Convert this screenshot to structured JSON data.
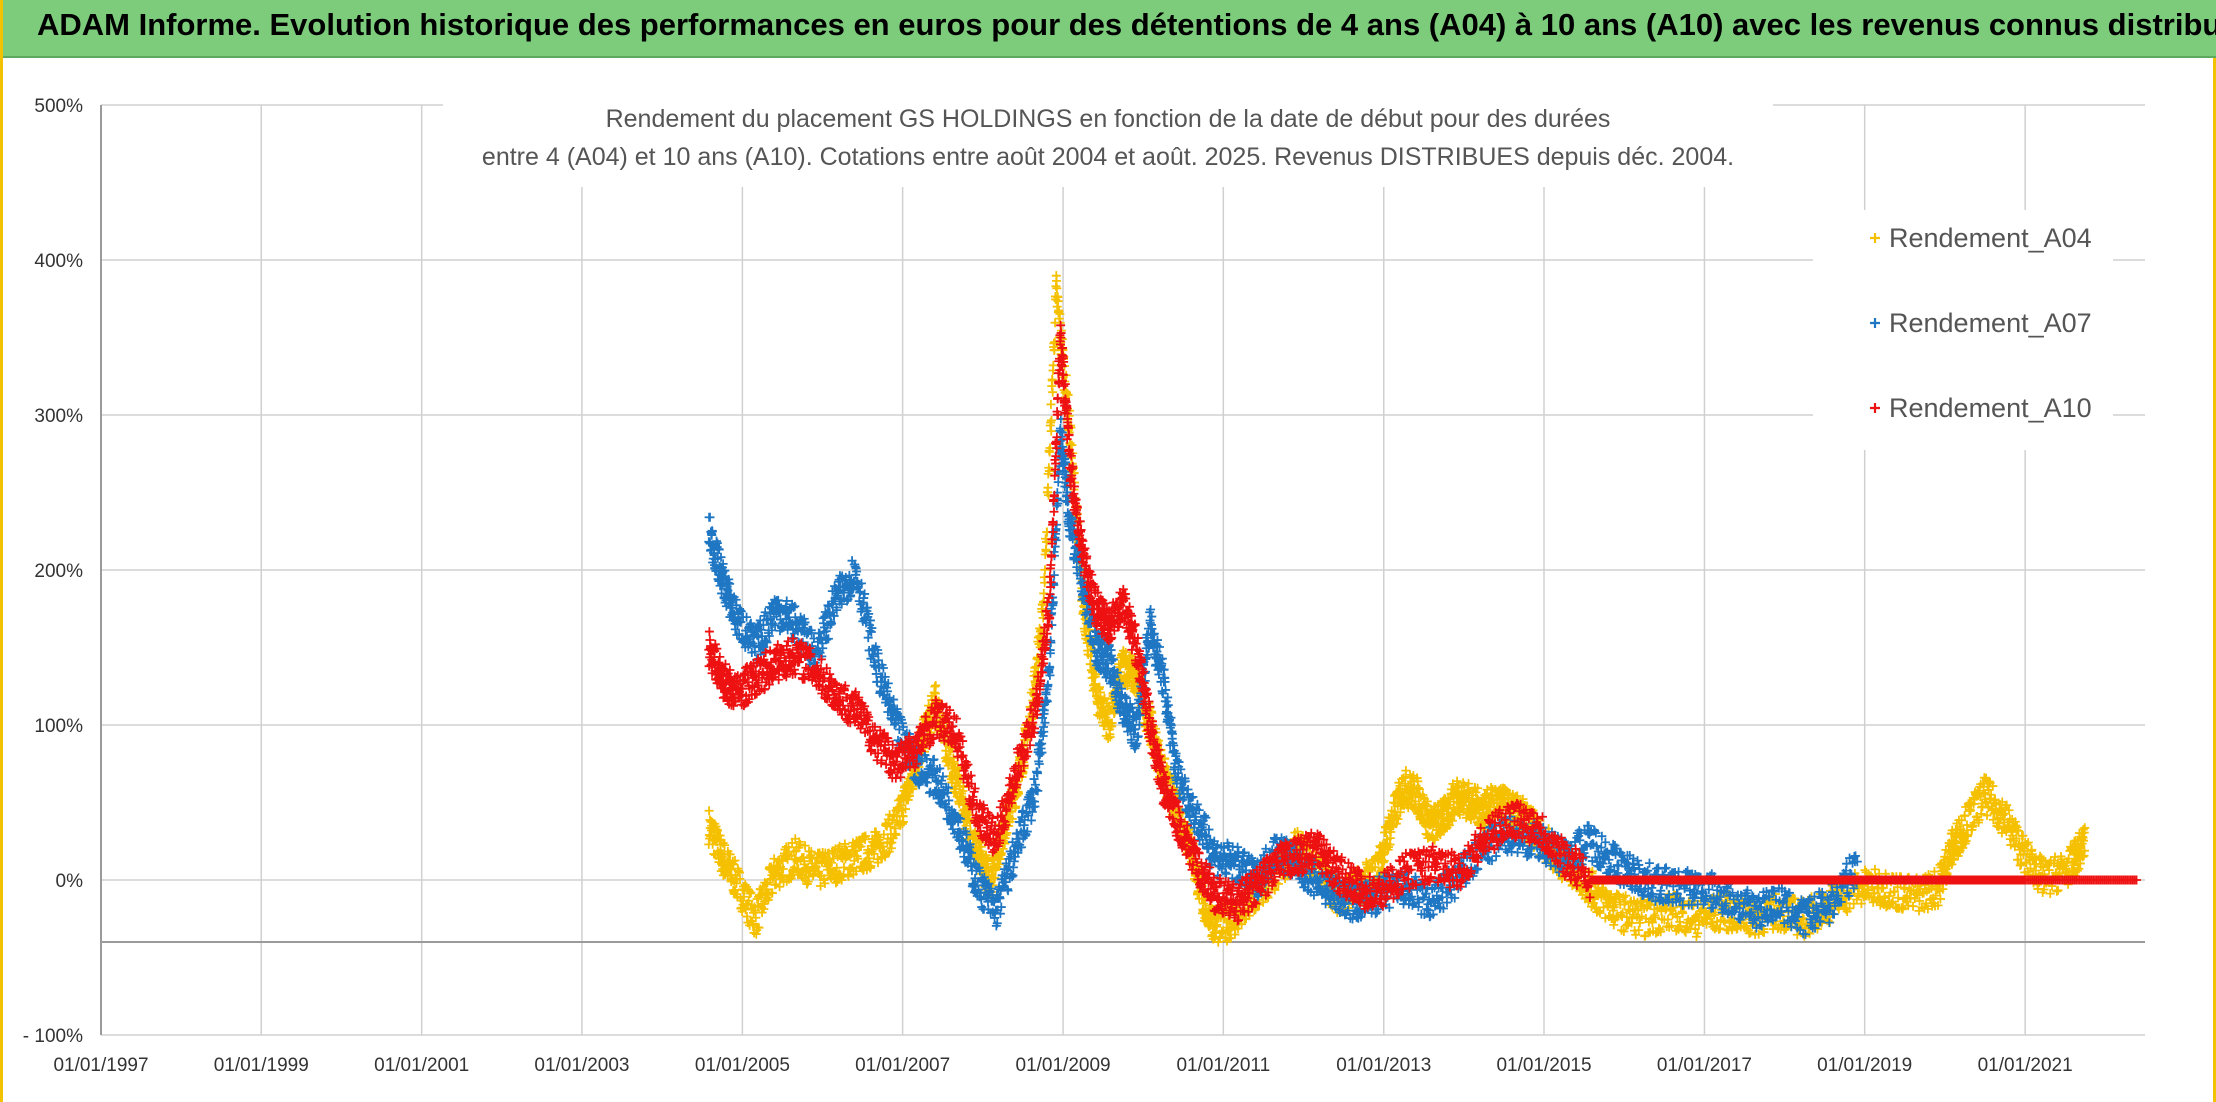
{
  "banner": {
    "title": "ADAM Informe. Evolution historique des performances en euros pour des détentions de 4 ans (A04) à 10 ans (A10) avec les revenus connus distribués"
  },
  "colors": {
    "banner": "#7ccc7c",
    "frame_accent": "#f2c200",
    "a04": "#f5c000",
    "a07": "#1f77c4",
    "a10": "#ee1111",
    "grid": "#d0d0d0",
    "axis_text": "#333333"
  },
  "chart_data": {
    "type": "scatter",
    "title": "Rendement du placement GS HOLDINGS en fonction de la date de début pour des durées",
    "subtitle": "entre 4 (A04) et 10 ans (A10). Cotations entre août 2004 et août. 2025. Revenus DISTRIBUES depuis déc. 2004.",
    "x_axis": {
      "kind": "date",
      "min": "1997-01-01",
      "max": "2022-07-01",
      "ticks": [
        "1997-01-01",
        "1999-01-01",
        "2001-01-01",
        "2003-01-01",
        "2005-01-01",
        "2007-01-01",
        "2009-01-01",
        "2011-01-01",
        "2013-01-01",
        "2015-01-01",
        "2017-01-01",
        "2019-01-01",
        "2021-01-01"
      ],
      "tick_labels": [
        "01/01/1997",
        "01/01/1999",
        "01/01/2001",
        "01/01/2003",
        "01/01/2005",
        "01/01/2007",
        "01/01/2009",
        "01/01/2011",
        "01/01/2013",
        "01/01/2015",
        "01/01/2017",
        "01/01/2019",
        "01/01/2021"
      ]
    },
    "y_axis": {
      "min": -100,
      "max": 500,
      "unit": "%",
      "ticks": [
        -100,
        0,
        100,
        200,
        300,
        400,
        500
      ],
      "tick_labels": [
        "- 100%",
        "0%",
        "100%",
        "200%",
        "300%",
        "400%",
        "500%"
      ],
      "extra_line": -40
    },
    "grid": true,
    "legend_position": "top-right",
    "marker": "+",
    "series": [
      {
        "name": "Rendement_A04",
        "points": [
          [
            "2004-08-01",
            35
          ],
          [
            "2004-10-01",
            15
          ],
          [
            "2004-12-01",
            0
          ],
          [
            "2005-03-01",
            -25
          ],
          [
            "2005-06-01",
            5
          ],
          [
            "2005-09-01",
            15
          ],
          [
            "2005-12-01",
            5
          ],
          [
            "2006-03-01",
            10
          ],
          [
            "2006-06-01",
            15
          ],
          [
            "2006-09-01",
            20
          ],
          [
            "2006-12-01",
            35
          ],
          [
            "2007-02-01",
            60
          ],
          [
            "2007-04-01",
            90
          ],
          [
            "2007-06-01",
            115
          ],
          [
            "2007-08-01",
            80
          ],
          [
            "2007-10-01",
            50
          ],
          [
            "2007-12-01",
            20
          ],
          [
            "2008-02-01",
            0
          ],
          [
            "2008-04-01",
            30
          ],
          [
            "2008-06-01",
            60
          ],
          [
            "2008-08-01",
            100
          ],
          [
            "2008-10-01",
            170
          ],
          [
            "2008-12-01",
            380
          ],
          [
            "2009-02-01",
            290
          ],
          [
            "2009-04-01",
            180
          ],
          [
            "2009-06-01",
            120
          ],
          [
            "2009-08-01",
            100
          ],
          [
            "2009-10-01",
            140
          ],
          [
            "2009-12-01",
            130
          ],
          [
            "2010-02-01",
            100
          ],
          [
            "2010-04-01",
            70
          ],
          [
            "2010-06-01",
            45
          ],
          [
            "2010-08-01",
            25
          ],
          [
            "2010-10-01",
            -15
          ],
          [
            "2010-12-01",
            -30
          ],
          [
            "2011-03-01",
            -25
          ],
          [
            "2011-06-01",
            -10
          ],
          [
            "2011-09-01",
            5
          ],
          [
            "2011-12-01",
            20
          ],
          [
            "2012-03-01",
            10
          ],
          [
            "2012-06-01",
            -10
          ],
          [
            "2012-09-01",
            -5
          ],
          [
            "2012-12-01",
            5
          ],
          [
            "2013-02-01",
            35
          ],
          [
            "2013-04-01",
            60
          ],
          [
            "2013-06-01",
            55
          ],
          [
            "2013-08-01",
            35
          ],
          [
            "2013-10-01",
            40
          ],
          [
            "2013-12-01",
            55
          ],
          [
            "2014-02-01",
            50
          ],
          [
            "2014-04-01",
            45
          ],
          [
            "2014-06-01",
            50
          ],
          [
            "2014-08-01",
            45
          ],
          [
            "2014-10-01",
            40
          ],
          [
            "2014-12-01",
            30
          ],
          [
            "2015-03-01",
            15
          ],
          [
            "2015-06-01",
            5
          ],
          [
            "2015-09-01",
            -10
          ],
          [
            "2015-12-01",
            -20
          ],
          [
            "2016-04-01",
            -25
          ],
          [
            "2016-08-01",
            -20
          ],
          [
            "2016-12-01",
            -25
          ],
          [
            "2017-04-01",
            -20
          ],
          [
            "2017-08-01",
            -25
          ],
          [
            "2017-12-01",
            -20
          ],
          [
            "2018-04-01",
            -25
          ],
          [
            "2018-08-01",
            -15
          ],
          [
            "2018-12-01",
            -5
          ],
          [
            "2019-04-01",
            -5
          ],
          [
            "2019-08-01",
            -10
          ],
          [
            "2019-12-01",
            -5
          ],
          [
            "2020-02-01",
            20
          ],
          [
            "2020-04-01",
            35
          ],
          [
            "2020-07-01",
            55
          ],
          [
            "2020-10-01",
            40
          ],
          [
            "2021-01-01",
            15
          ],
          [
            "2021-04-01",
            0
          ],
          [
            "2021-08-01",
            10
          ],
          [
            "2021-10-01",
            25
          ]
        ]
      },
      {
        "name": "Rendement_A07",
        "points": [
          [
            "2004-08-01",
            225
          ],
          [
            "2004-10-01",
            195
          ],
          [
            "2004-12-01",
            170
          ],
          [
            "2005-03-01",
            150
          ],
          [
            "2005-06-01",
            175
          ],
          [
            "2005-09-01",
            165
          ],
          [
            "2005-12-01",
            145
          ],
          [
            "2006-03-01",
            180
          ],
          [
            "2006-06-01",
            200
          ],
          [
            "2006-09-01",
            140
          ],
          [
            "2006-12-01",
            100
          ],
          [
            "2007-03-01",
            75
          ],
          [
            "2007-06-01",
            65
          ],
          [
            "2007-09-01",
            40
          ],
          [
            "2007-12-01",
            0
          ],
          [
            "2008-03-01",
            -20
          ],
          [
            "2008-06-01",
            20
          ],
          [
            "2008-09-01",
            60
          ],
          [
            "2008-11-01",
            140
          ],
          [
            "2008-12-20",
            290
          ],
          [
            "2009-02-01",
            230
          ],
          [
            "2009-04-01",
            190
          ],
          [
            "2009-06-01",
            150
          ],
          [
            "2009-08-01",
            140
          ],
          [
            "2009-10-01",
            110
          ],
          [
            "2009-12-01",
            95
          ],
          [
            "2010-02-01",
            165
          ],
          [
            "2010-04-01",
            130
          ],
          [
            "2010-06-01",
            70
          ],
          [
            "2010-09-01",
            40
          ],
          [
            "2010-12-01",
            15
          ],
          [
            "2011-03-01",
            10
          ],
          [
            "2011-06-01",
            0
          ],
          [
            "2011-09-01",
            20
          ],
          [
            "2011-12-01",
            10
          ],
          [
            "2012-03-01",
            0
          ],
          [
            "2012-06-01",
            -10
          ],
          [
            "2012-09-01",
            -15
          ],
          [
            "2012-12-01",
            -10
          ],
          [
            "2013-04-01",
            -5
          ],
          [
            "2013-08-01",
            -15
          ],
          [
            "2013-12-01",
            0
          ],
          [
            "2014-04-01",
            20
          ],
          [
            "2014-08-01",
            30
          ],
          [
            "2014-12-01",
            25
          ],
          [
            "2015-04-01",
            15
          ],
          [
            "2015-08-01",
            25
          ],
          [
            "2015-12-01",
            10
          ],
          [
            "2016-04-01",
            0
          ],
          [
            "2016-08-01",
            -5
          ],
          [
            "2016-12-01",
            -5
          ],
          [
            "2017-04-01",
            -10
          ],
          [
            "2017-08-01",
            -20
          ],
          [
            "2017-12-01",
            -15
          ],
          [
            "2018-04-01",
            -25
          ],
          [
            "2018-08-01",
            -15
          ],
          [
            "2018-12-01",
            10
          ]
        ]
      },
      {
        "name": "Rendement_A10",
        "points": [
          [
            "2004-08-01",
            150
          ],
          [
            "2004-10-01",
            130
          ],
          [
            "2004-12-01",
            120
          ],
          [
            "2005-03-01",
            130
          ],
          [
            "2005-06-01",
            140
          ],
          [
            "2005-09-01",
            145
          ],
          [
            "2005-12-01",
            135
          ],
          [
            "2006-03-01",
            120
          ],
          [
            "2006-06-01",
            110
          ],
          [
            "2006-09-01",
            90
          ],
          [
            "2006-12-01",
            75
          ],
          [
            "2007-03-01",
            85
          ],
          [
            "2007-06-01",
            105
          ],
          [
            "2007-09-01",
            95
          ],
          [
            "2007-12-01",
            45
          ],
          [
            "2008-03-01",
            25
          ],
          [
            "2008-06-01",
            70
          ],
          [
            "2008-09-01",
            110
          ],
          [
            "2008-11-01",
            180
          ],
          [
            "2008-12-20",
            350
          ],
          [
            "2009-02-01",
            270
          ],
          [
            "2009-04-01",
            210
          ],
          [
            "2009-06-01",
            175
          ],
          [
            "2009-08-01",
            165
          ],
          [
            "2009-10-01",
            180
          ],
          [
            "2009-12-01",
            150
          ],
          [
            "2010-02-01",
            100
          ],
          [
            "2010-04-01",
            60
          ],
          [
            "2010-06-01",
            40
          ],
          [
            "2010-09-01",
            10
          ],
          [
            "2010-12-01",
            -10
          ],
          [
            "2011-03-01",
            -15
          ],
          [
            "2011-06-01",
            -5
          ],
          [
            "2011-09-01",
            10
          ],
          [
            "2011-12-01",
            15
          ],
          [
            "2012-03-01",
            20
          ],
          [
            "2012-06-01",
            5
          ],
          [
            "2012-09-01",
            -5
          ],
          [
            "2012-12-01",
            -10
          ],
          [
            "2013-04-01",
            5
          ],
          [
            "2013-08-01",
            10
          ],
          [
            "2013-12-01",
            5
          ],
          [
            "2014-04-01",
            25
          ],
          [
            "2014-08-01",
            40
          ],
          [
            "2014-12-01",
            35
          ],
          [
            "2015-04-01",
            15
          ],
          [
            "2015-08-01",
            0
          ],
          [
            "2016-01-01",
            0
          ],
          [
            "2017-01-01",
            0
          ],
          [
            "2018-01-01",
            0
          ],
          [
            "2019-01-01",
            0
          ],
          [
            "2020-01-01",
            0
          ],
          [
            "2021-01-01",
            0
          ],
          [
            "2022-06-01",
            0
          ]
        ]
      }
    ]
  }
}
